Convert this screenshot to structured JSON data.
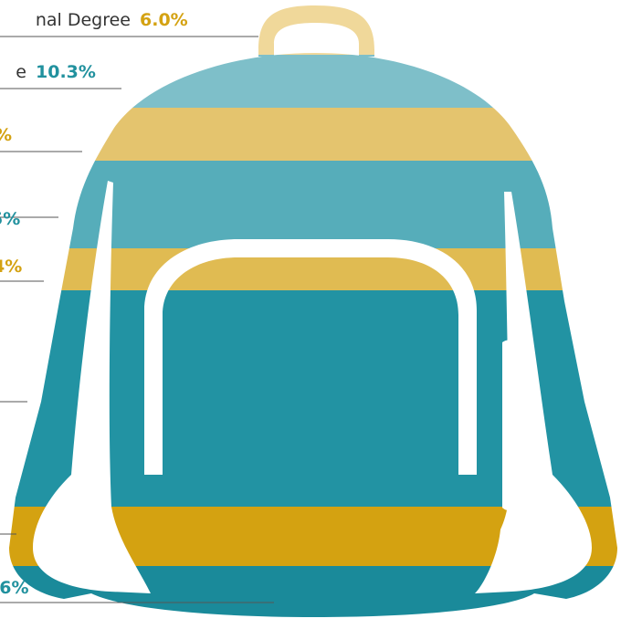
{
  "chart_data": {
    "type": "bar",
    "labels": [
      {
        "label": "nal Degree",
        "value": "6.0%",
        "color": "#d4a212"
      },
      {
        "label": "e",
        "value": "10.3%",
        "color": "#21919e"
      },
      {
        "label": "",
        "value": "%",
        "color": "#d4a212"
      },
      {
        "label": "",
        "value": "5%",
        "color": "#21919e"
      },
      {
        "label": "",
        "value": "4%",
        "color": "#d4a212"
      },
      {
        "label": "",
        "value": "",
        "color": "#21919e"
      },
      {
        "label": "",
        "value": "",
        "color": "#d4a212"
      },
      {
        "label": "",
        "value": ".6%",
        "color": "#21919e"
      }
    ],
    "bands": [
      {
        "color": "#f0d89a"
      },
      {
        "color": "#7ebfc9"
      },
      {
        "color": "#e4c46e"
      },
      {
        "color": "#56adba"
      },
      {
        "color": "#e0bb52"
      },
      {
        "color": "#2293a3"
      },
      {
        "color": "#d4a211"
      },
      {
        "color": "#1a8a9a"
      }
    ]
  }
}
